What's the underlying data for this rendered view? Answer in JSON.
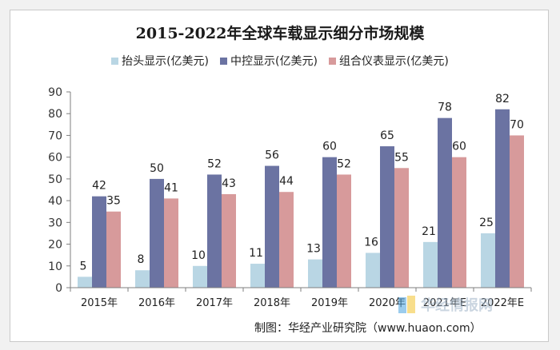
{
  "chart_data": {
    "type": "bar",
    "title": "2015-2022年全球车载显示细分市场规模",
    "categories": [
      "2015年",
      "2016年",
      "2017年",
      "2018年",
      "2019年",
      "2020年",
      "2021年E",
      "2022年E"
    ],
    "series": [
      {
        "name": "抬头显示(亿美元)",
        "color": "#b9d6e4",
        "values": [
          5,
          8,
          10,
          11,
          13,
          16,
          21,
          25
        ]
      },
      {
        "name": "中控显示(亿美元)",
        "color": "#6b73a2",
        "values": [
          42,
          50,
          52,
          56,
          60,
          65,
          78,
          82
        ]
      },
      {
        "name": "组合仪表显示(亿美元)",
        "color": "#d79a9b",
        "values": [
          35,
          41,
          43,
          44,
          52,
          55,
          60,
          70
        ]
      }
    ],
    "ylim": [
      0,
      90
    ],
    "yticks": [
      0,
      10,
      20,
      30,
      40,
      50,
      60,
      70,
      80,
      90
    ],
    "xlabel": "",
    "ylabel": "",
    "grid": false,
    "legend": "top"
  },
  "source_text": "制图：华经产业研究院（www.huaon.com）",
  "watermark_text": "华经情报网"
}
